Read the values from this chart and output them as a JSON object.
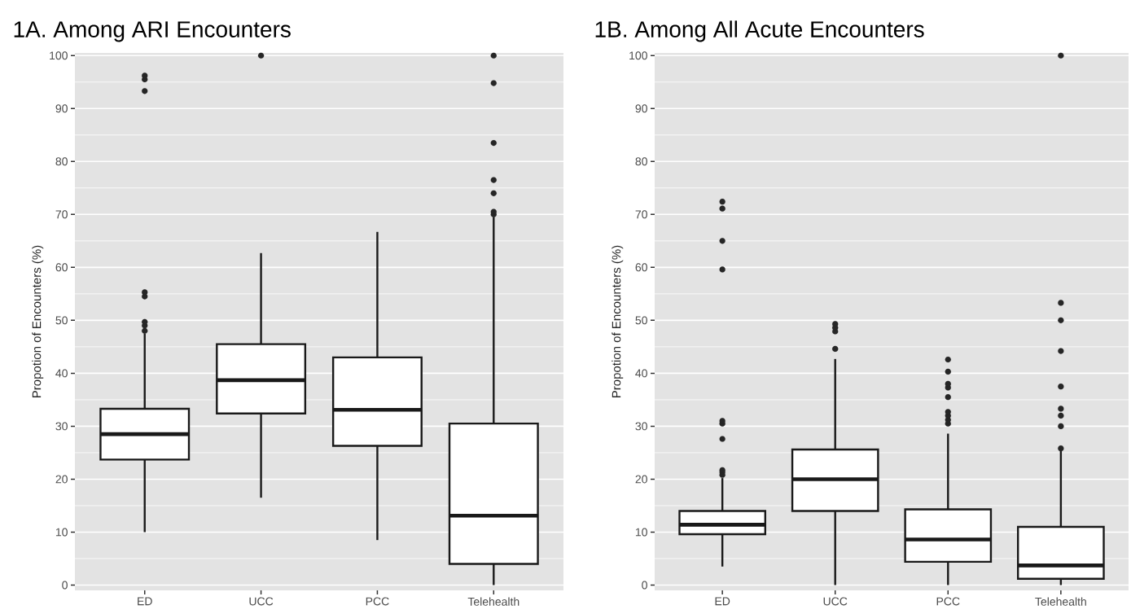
{
  "chart_data": [
    {
      "type": "box",
      "title": "1A. Among ARI Encounters",
      "ylabel": "Propotion of Encounters (%)",
      "categories": [
        "ED",
        "UCC",
        "PCC",
        "Telehealth"
      ],
      "boxes": [
        {
          "low": 10,
          "q1": 23.7,
          "median": 28.5,
          "q3": 33.3,
          "high": 47.5,
          "outliers": [
            48,
            49,
            49.7,
            54.5,
            55.3,
            93.3,
            95.5,
            96.2
          ]
        },
        {
          "low": 16.5,
          "q1": 32.4,
          "median": 38.7,
          "q3": 45.5,
          "high": 62.7,
          "outliers": [
            100
          ]
        },
        {
          "low": 8.5,
          "q1": 26.3,
          "median": 33.1,
          "q3": 43,
          "high": 66.7
        },
        {
          "low": 0,
          "q1": 4,
          "median": 13.1,
          "q3": 30.5,
          "high": 69.5,
          "outliers": [
            70,
            70.5,
            74,
            76.5,
            83.5,
            94.8,
            100
          ]
        }
      ],
      "ylim": [
        -1,
        100.5
      ],
      "yticks": [
        0,
        10,
        20,
        30,
        40,
        50,
        60,
        70,
        80,
        90,
        100
      ],
      "grid": "y",
      "marker": "circle"
    },
    {
      "type": "box",
      "title": "1B. Among All Acute Encounters",
      "ylabel": "Propotion of Encounters (%)",
      "categories": [
        "ED",
        "UCC",
        "PCC",
        "Telehealth"
      ],
      "boxes": [
        {
          "low": 3.5,
          "q1": 9.6,
          "median": 11.4,
          "q3": 14,
          "high": 20.2,
          "outliers": [
            20.8,
            21.3,
            21.7,
            27.6,
            30.5,
            31,
            59.6,
            65,
            71.1,
            72.4
          ]
        },
        {
          "low": 0,
          "q1": 14,
          "median": 20,
          "q3": 25.6,
          "high": 42.7,
          "outliers": [
            44.6,
            47.9,
            48.6,
            49.3
          ]
        },
        {
          "low": 0,
          "q1": 4.4,
          "median": 8.6,
          "q3": 14.3,
          "high": 28.6,
          "outliers": [
            30.5,
            31.2,
            32,
            32.7,
            35.5,
            37.3,
            38,
            40.3,
            42.6
          ]
        },
        {
          "low": 0,
          "q1": 1.2,
          "median": 3.7,
          "q3": 11,
          "high": 25.6,
          "outliers": [
            25.8,
            30,
            32,
            33.3,
            37.5,
            44.2,
            50,
            53.3,
            100
          ]
        }
      ],
      "ylim": [
        -1,
        100.5
      ],
      "yticks": [
        0,
        10,
        20,
        30,
        40,
        50,
        60,
        70,
        80,
        90,
        100
      ],
      "grid": "y",
      "marker": "circle"
    }
  ]
}
